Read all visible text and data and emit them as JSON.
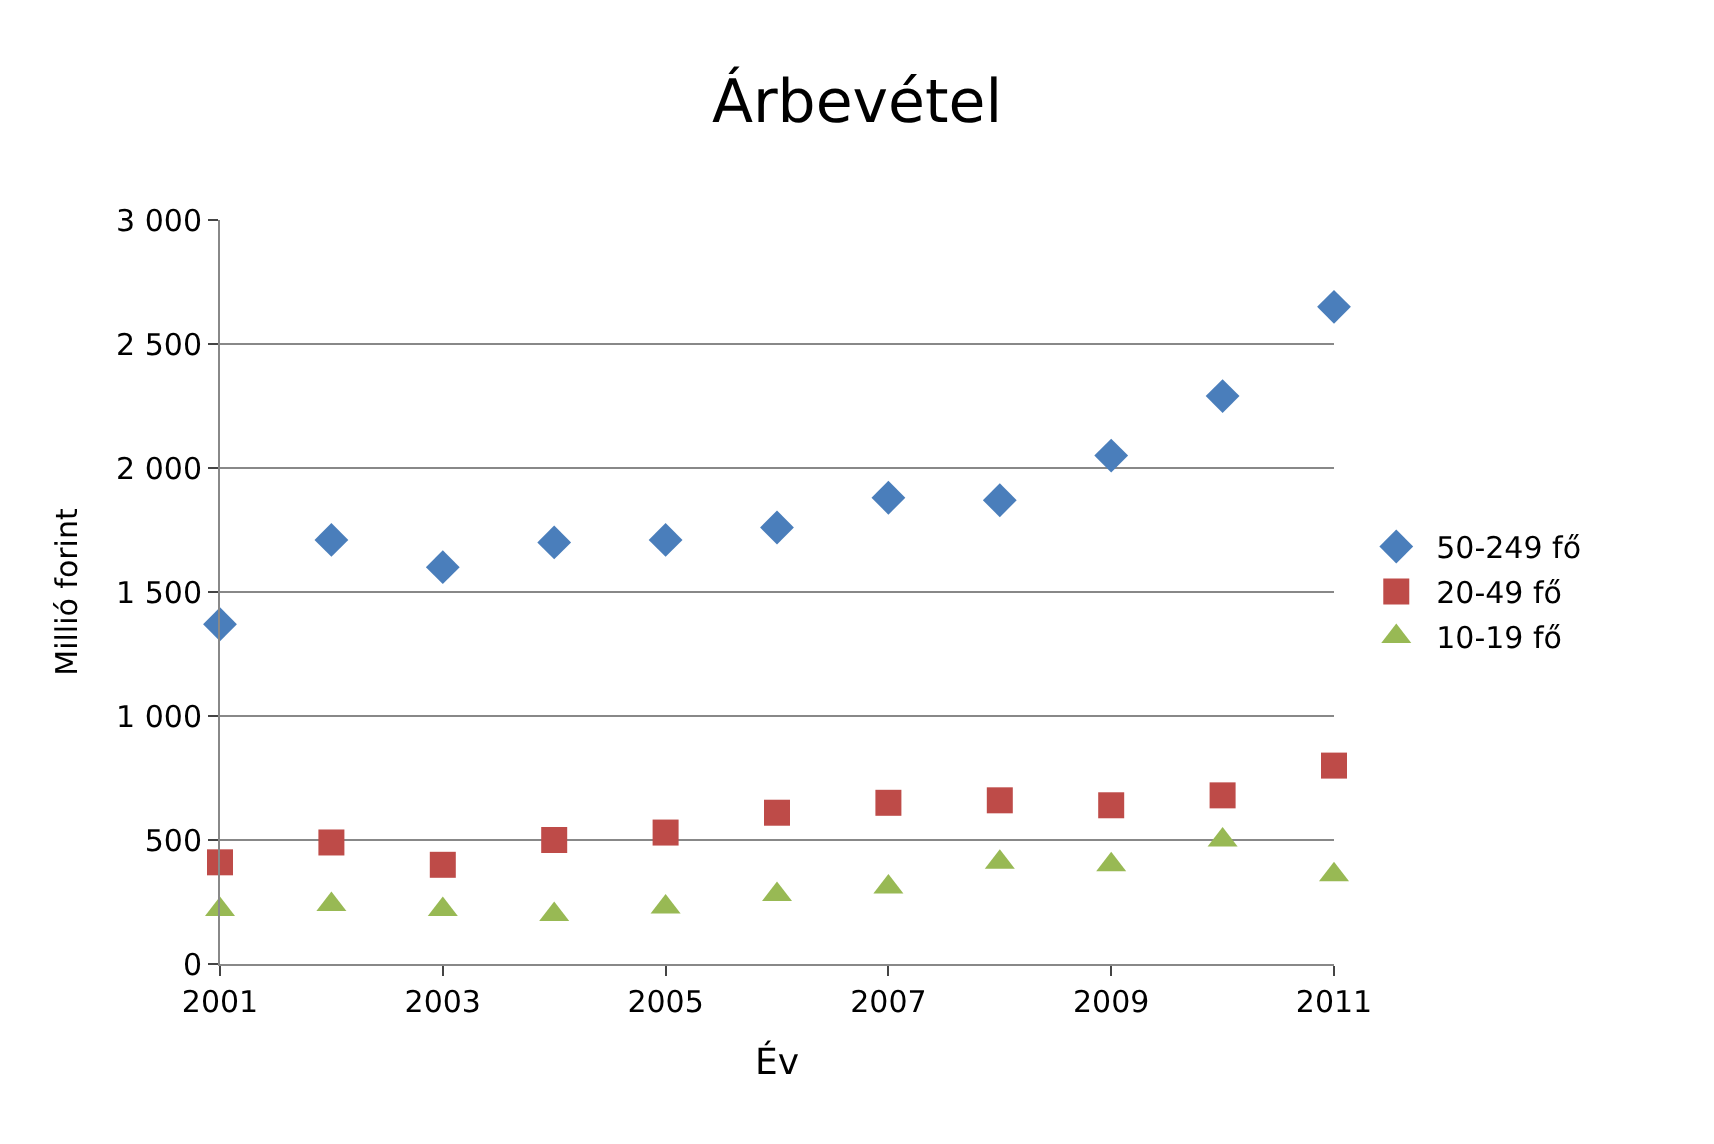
{
  "chart_data": {
    "type": "scatter",
    "title": "Árbevétel",
    "xlabel": "Év",
    "ylabel": "Millió forint",
    "x": [
      2001,
      2002,
      2003,
      2004,
      2005,
      2006,
      2007,
      2008,
      2009,
      2010,
      2011
    ],
    "series": [
      {
        "name": "50-249 fő",
        "color": "#4a7ebb",
        "marker": "diamond",
        "values": [
          1370,
          1710,
          1600,
          1700,
          1710,
          1760,
          1880,
          1870,
          2050,
          2290,
          2650
        ]
      },
      {
        "name": "20-49 fő",
        "color": "#be4b48",
        "marker": "square",
        "values": [
          410,
          490,
          400,
          500,
          530,
          610,
          650,
          660,
          640,
          680,
          800
        ]
      },
      {
        "name": "10-19 fő",
        "color": "#98b954",
        "marker": "triangle",
        "values": [
          220,
          240,
          220,
          200,
          230,
          280,
          310,
          410,
          400,
          500,
          360
        ]
      }
    ],
    "xlim": [
      2001,
      2011
    ],
    "xticks": [
      2001,
      2003,
      2005,
      2007,
      2009,
      2011
    ],
    "ylim": [
      0,
      3000
    ],
    "yticks": [
      0,
      {
        "value": 500,
        "label": "500"
      },
      {
        "value": 1000,
        "label": "1 000"
      },
      {
        "value": 1500,
        "label": "1 500"
      },
      {
        "value": 2000,
        "label": "2 000"
      },
      {
        "value": 2500,
        "label": "2 500"
      },
      {
        "value": 3000,
        "label": "3 000"
      }
    ],
    "grid": "y",
    "legend": "right"
  }
}
